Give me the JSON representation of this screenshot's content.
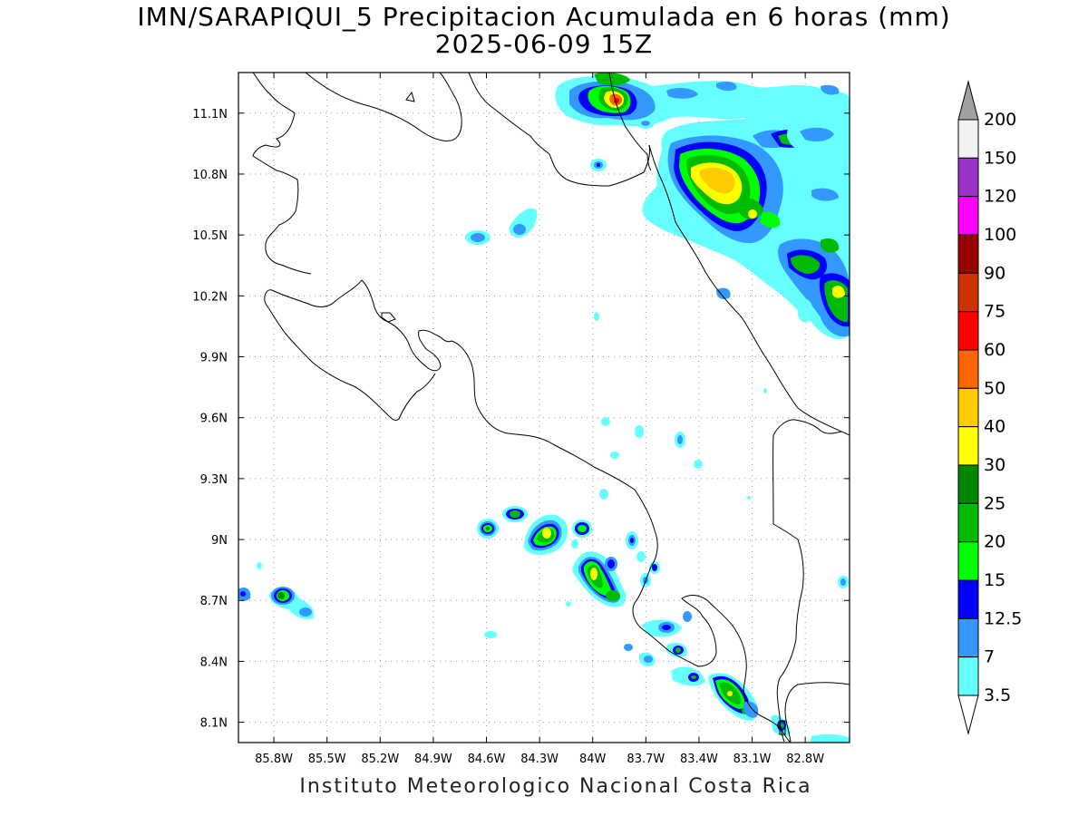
{
  "title": {
    "line1": "IMN/SARAPIQUI_5 Precipitacion Acumulada en 6 horas (mm)",
    "line2": "2025-06-09 15Z"
  },
  "credit": "Instituto Meteorologico Nacional Costa Rica",
  "map": {
    "lon_labels": [
      "85.8W",
      "85.5W",
      "85.2W",
      "84.9W",
      "84.6W",
      "84.3W",
      "84W",
      "83.7W",
      "83.4W",
      "83.1W",
      "82.8W"
    ],
    "lat_labels": [
      "11.1N",
      "10.8N",
      "10.5N",
      "10.2N",
      "9.9N",
      "9.6N",
      "9.3N",
      "9N",
      "8.7N",
      "8.4N",
      "8.1N"
    ],
    "lon_values": [
      -85.8,
      -85.5,
      -85.2,
      -84.9,
      -84.6,
      -84.3,
      -84.0,
      -83.7,
      -83.4,
      -83.1,
      -82.8
    ],
    "lat_values": [
      11.1,
      10.8,
      10.5,
      10.2,
      9.9,
      9.6,
      9.3,
      9.0,
      8.7,
      8.4,
      8.1
    ],
    "lon_range": [
      -86.0,
      -82.55
    ],
    "lat_range": [
      8.0,
      11.3
    ],
    "grid": true,
    "precip_cells": [
      {
        "lon": -83.85,
        "lat": 11.15,
        "mm": 60
      },
      {
        "lon": -83.95,
        "lat": 11.2,
        "mm": 20
      },
      {
        "lon": -83.25,
        "lat": 10.8,
        "mm": 40
      },
      {
        "lon": -83.1,
        "lat": 10.75,
        "mm": 30
      },
      {
        "lon": -83.35,
        "lat": 10.9,
        "mm": 25
      },
      {
        "lon": -82.95,
        "lat": 10.98,
        "mm": 15
      },
      {
        "lon": -82.7,
        "lat": 10.2,
        "mm": 30
      },
      {
        "lon": -82.8,
        "lat": 10.35,
        "mm": 20
      },
      {
        "lon": -84.0,
        "lat": 8.8,
        "mm": 40
      },
      {
        "lon": -84.25,
        "lat": 9.05,
        "mm": 30
      },
      {
        "lon": -83.15,
        "lat": 8.25,
        "mm": 25
      },
      {
        "lon": -85.8,
        "lat": 8.7,
        "mm": 20
      },
      {
        "lon": -84.6,
        "lat": 10.5,
        "mm": 7
      },
      {
        "lon": -84.4,
        "lat": 10.53,
        "mm": 7
      },
      {
        "lon": -84.55,
        "lat": 9.05,
        "mm": 15
      },
      {
        "lon": -83.5,
        "lat": 8.58,
        "mm": 12.5
      }
    ]
  },
  "colorbar": {
    "labels": [
      "200",
      "150",
      "120",
      "100",
      "90",
      "75",
      "60",
      "50",
      "40",
      "30",
      "25",
      "20",
      "15",
      "12.5",
      "7",
      "3.5"
    ],
    "colors": [
      "#f2f2f2",
      "#9933cc",
      "#ff00ff",
      "#990000",
      "#cc3300",
      "#ff0000",
      "#ff6600",
      "#ffcc00",
      "#ffff00",
      "#008800",
      "#00bb00",
      "#00ff00",
      "#0000ff",
      "#3399ff",
      "#66ffff"
    ],
    "top_arrow_color": "#a0a0a0",
    "bottom_arrow_color": "#ffffff"
  }
}
